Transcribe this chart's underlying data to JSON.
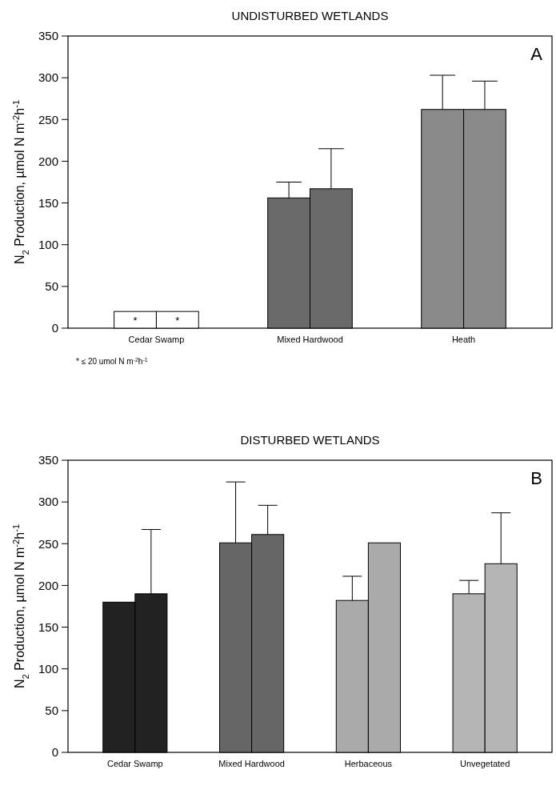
{
  "chart_data": [
    {
      "type": "bar",
      "title": "UNDISTURBED WETLANDS",
      "ylabel": "N$_{2}$ Production, µmol N m$^{-2}$h$^{-1}$",
      "categories": [
        "Cedar Swamp",
        "Mixed Hardwood",
        "Heath"
      ],
      "ylim": [
        0,
        350
      ],
      "yticks": [
        0,
        50,
        100,
        150,
        200,
        250,
        300,
        350
      ],
      "grid": false,
      "annotations": [
        "A",
        "* ≤ 20 umol N m$^{-2}$h$^{-1}$"
      ],
      "series": [
        {
          "colors": [
            "#ffffff",
            "#6a6a6a",
            "#8a8a8a"
          ],
          "values": [
            20,
            156,
            262
          ],
          "value_labels": [
            "*",
            null,
            null
          ],
          "errors": [
            null,
            [
              156,
              175
            ],
            [
              262,
              303
            ]
          ]
        },
        {
          "colors": [
            "#ffffff",
            "#6a6a6a",
            "#8a8a8a"
          ],
          "values": [
            20,
            167,
            262
          ],
          "value_labels": [
            "*",
            null,
            null
          ],
          "errors": [
            null,
            [
              167,
              215
            ],
            [
              262,
              296
            ]
          ]
        }
      ]
    },
    {
      "type": "bar",
      "title": "DISTURBED WETLANDS",
      "ylabel": "N$_{2}$ Production, µmol N m$^{-2}$h$^{-1}$",
      "categories": [
        "Cedar Swamp",
        "Mixed Hardwood",
        "Herbaceous",
        "Unvegetated"
      ],
      "ylim": [
        0,
        350
      ],
      "yticks": [
        0,
        50,
        100,
        150,
        200,
        250,
        300,
        350
      ],
      "grid": false,
      "annotations": [
        "B"
      ],
      "series": [
        {
          "colors": [
            "#222222",
            "#666666",
            "#aaaaaa",
            "#b5b5b5"
          ],
          "values": [
            180,
            251,
            182,
            190
          ],
          "errors": [
            null,
            [
              251,
              324
            ],
            [
              182,
              211
            ],
            [
              190,
              206
            ]
          ]
        },
        {
          "colors": [
            "#222222",
            "#666666",
            "#aaaaaa",
            "#b5b5b5"
          ],
          "values": [
            190,
            261,
            251,
            226
          ],
          "errors": [
            [
              190,
              267
            ],
            [
              261,
              296
            ],
            null,
            [
              226,
              287
            ]
          ]
        }
      ]
    }
  ]
}
